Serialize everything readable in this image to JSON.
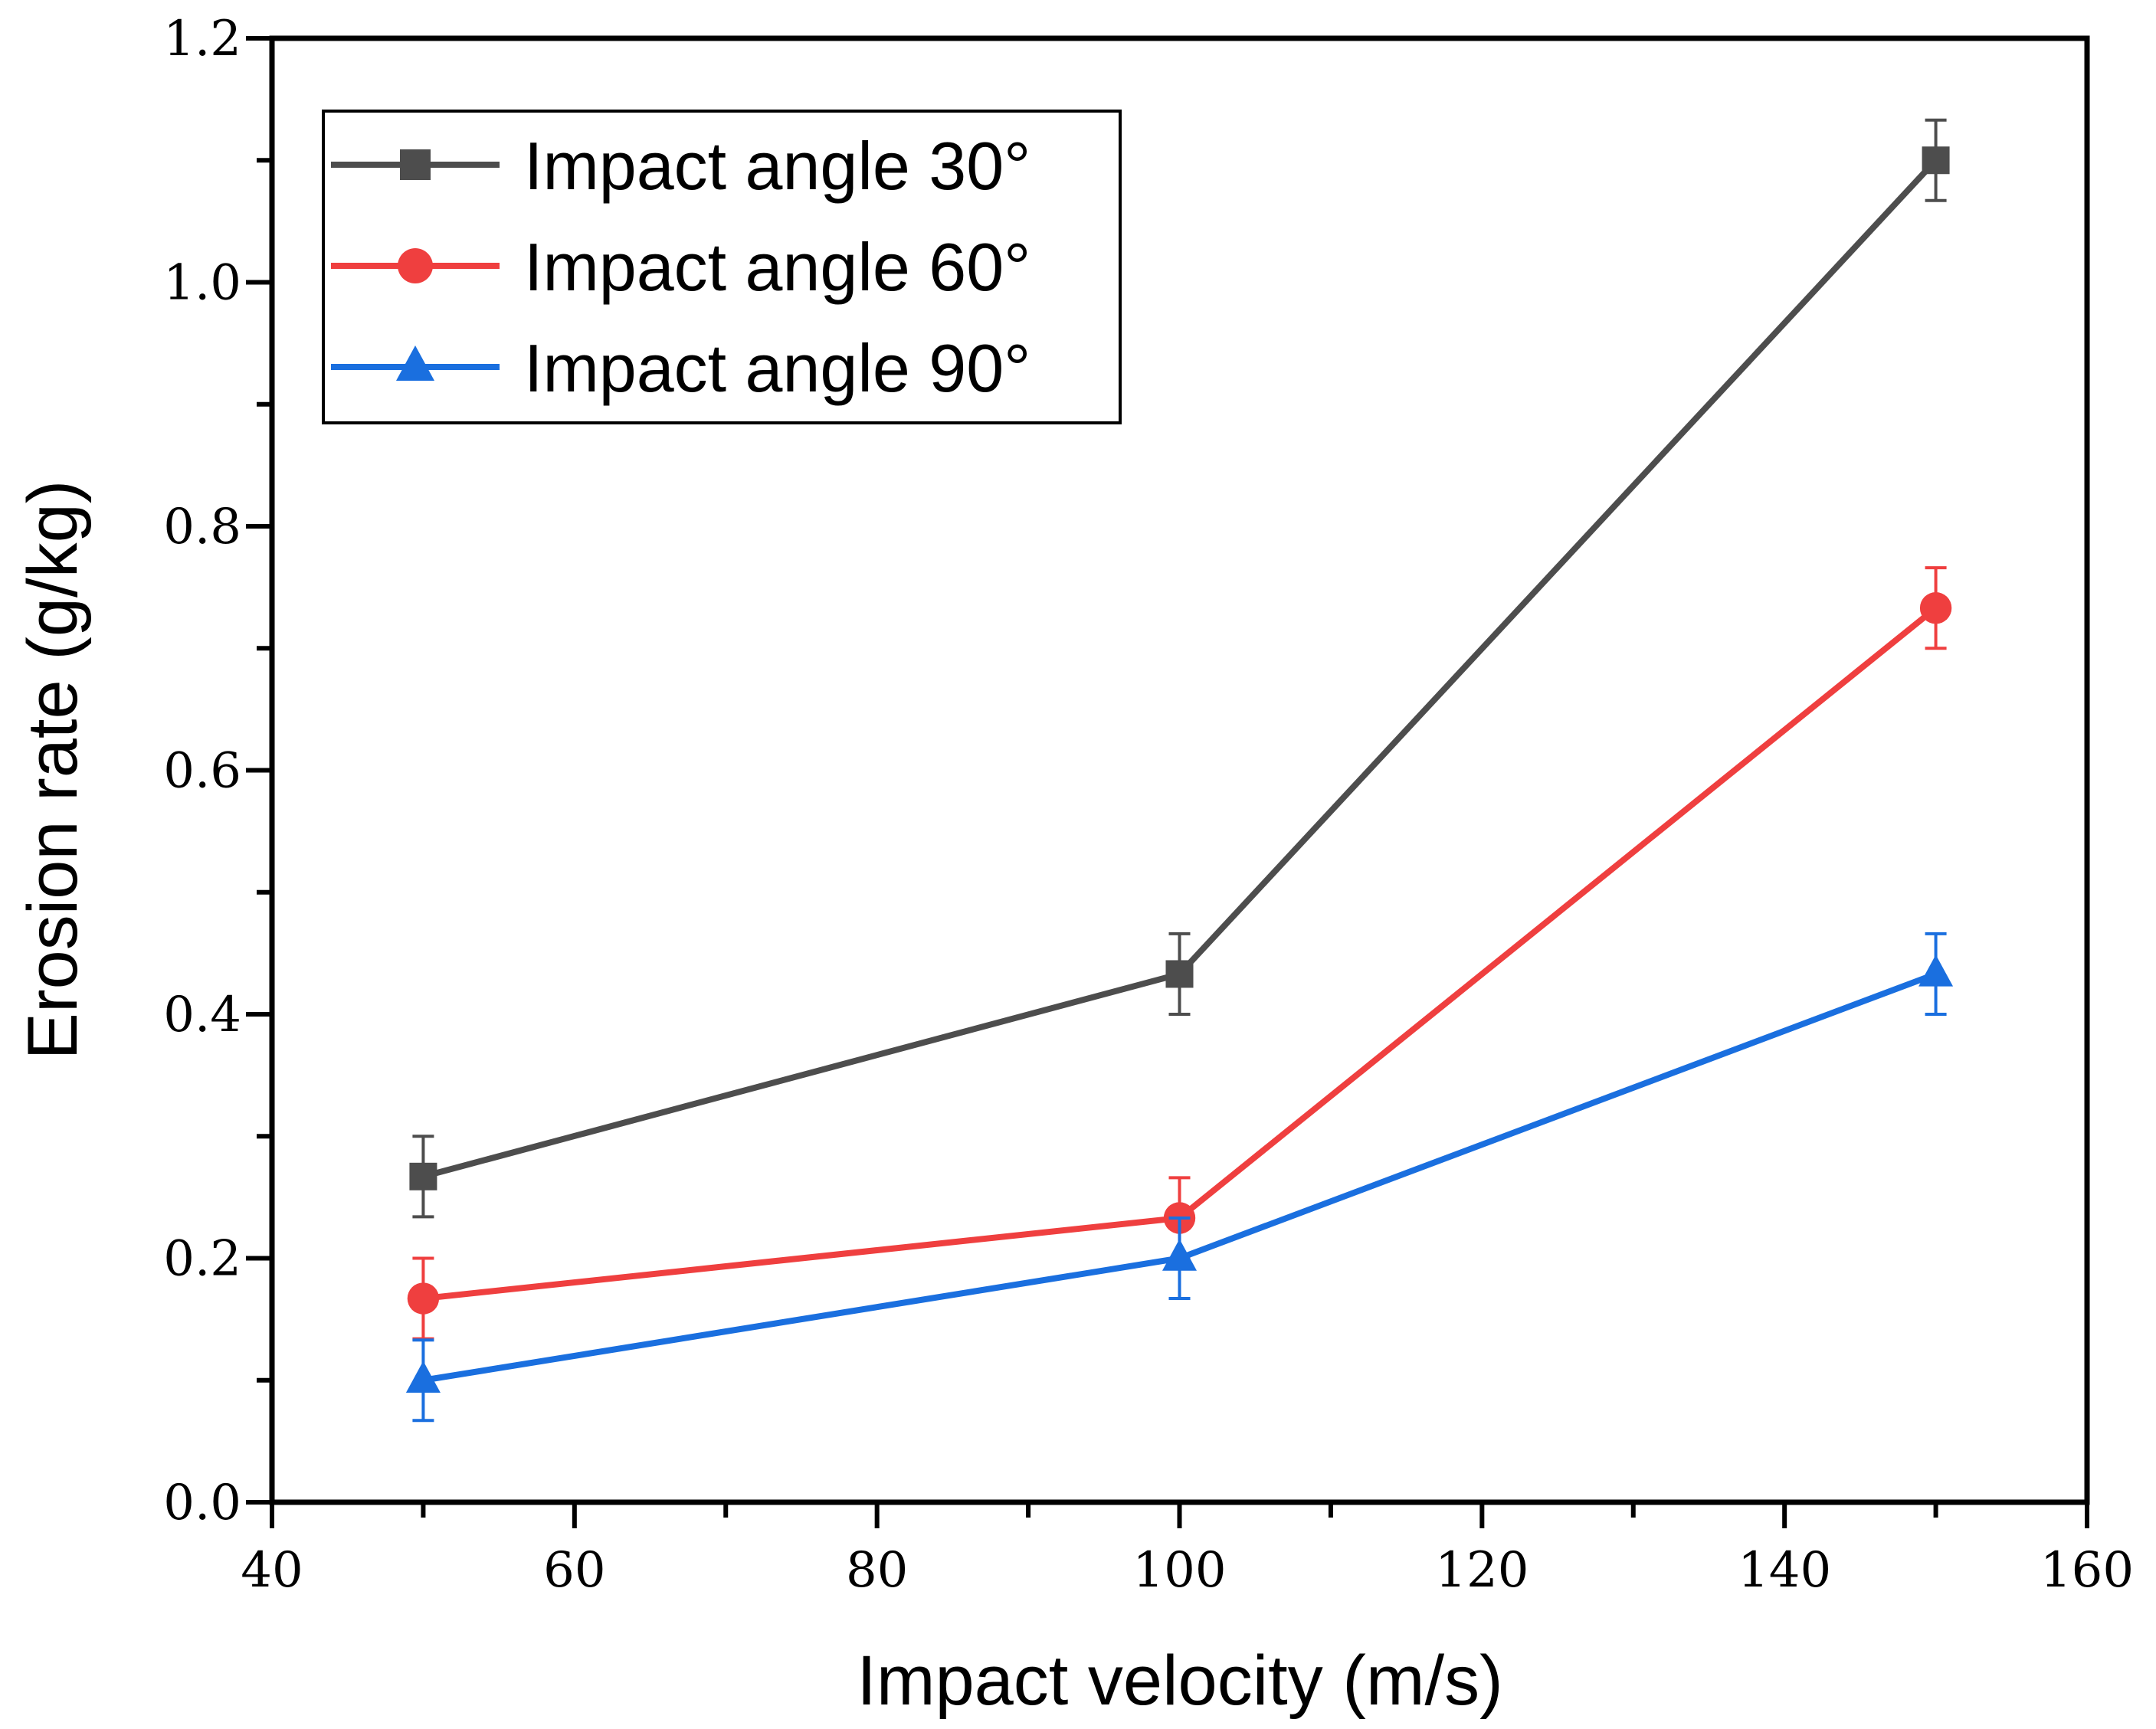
{
  "chart_data": {
    "type": "line",
    "title": "",
    "xlabel": "Impact velocity (m/s)",
    "ylabel": "Erosion rate (g/kg)",
    "xlim": [
      40,
      160
    ],
    "ylim": [
      0,
      1.2
    ],
    "xticks": [
      40,
      60,
      80,
      100,
      120,
      140,
      160
    ],
    "yticks": [
      "0.0",
      "0.2",
      "0.4",
      "0.6",
      "0.8",
      "1.0",
      "1.2"
    ],
    "x": [
      50,
      100,
      150
    ],
    "legend_position": "top-left",
    "grid": false,
    "series": [
      {
        "name": "Impact angle  30°",
        "color": "#4d4d4d",
        "marker": "square",
        "values": [
          0.267,
          0.433,
          1.1
        ],
        "errors": [
          0.033,
          0.033,
          0.033
        ]
      },
      {
        "name": "Impact angle  60°",
        "color": "#ef3f3f",
        "marker": "circle",
        "values": [
          0.167,
          0.233,
          0.733
        ],
        "errors": [
          0.033,
          0.033,
          0.033
        ]
      },
      {
        "name": "Impact angle  90°",
        "color": "#1a6fdf",
        "marker": "triangle",
        "values": [
          0.1,
          0.2,
          0.433
        ],
        "errors": [
          0.033,
          0.033,
          0.033
        ]
      }
    ]
  }
}
